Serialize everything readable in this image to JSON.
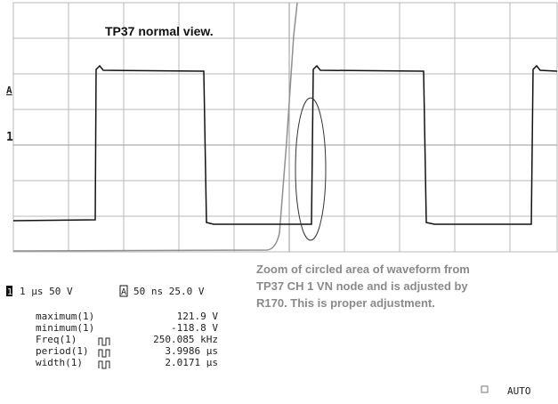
{
  "title": "TP37 normal view.",
  "markers": {
    "a": "A",
    "ch1": "1"
  },
  "annotation": [
    "Zoom of circled area of waveform from",
    "TP37 CH 1 VN node and is adjusted by",
    "R170.  This is proper adjustment."
  ],
  "timebase": [
    {
      "channel": "1",
      "setting": "1 μs 50 V"
    },
    {
      "channel": "A",
      "setting": "50 ns 25.0 V"
    }
  ],
  "measurements": [
    {
      "label": "maximum(1)",
      "value": "121.9 V"
    },
    {
      "label": "minimum(1)",
      "value": "-118.8 V"
    },
    {
      "label": "Freq(1)",
      "value": "250.085 kHz"
    },
    {
      "label": "period(1)",
      "value": "3.9986 μs"
    },
    {
      "label": "width(1)",
      "value": "2.0171 μs"
    }
  ],
  "status": "AUTO"
}
